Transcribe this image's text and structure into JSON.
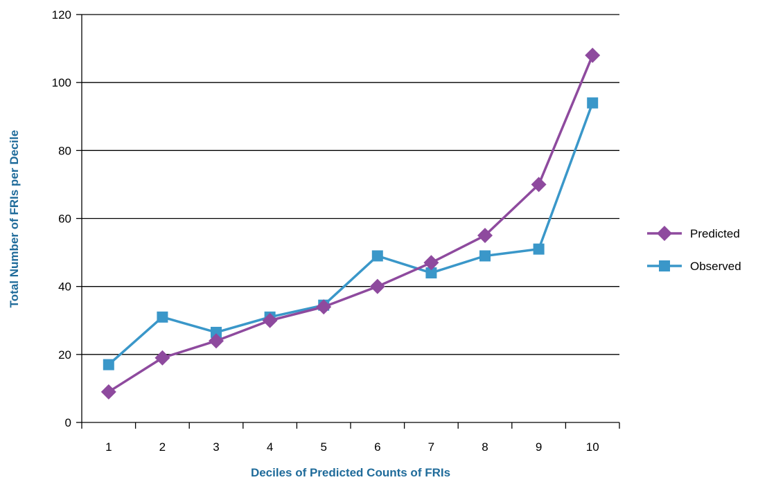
{
  "chart_data": {
    "type": "line",
    "title": "",
    "xlabel": "Deciles of Predicted Counts of FRIs",
    "ylabel": "Total Number of FRIs per Decile",
    "categories": [
      "1",
      "2",
      "3",
      "4",
      "5",
      "6",
      "7",
      "8",
      "9",
      "10"
    ],
    "ylim": [
      0,
      120
    ],
    "yticks": [
      0,
      20,
      40,
      60,
      80,
      100,
      120
    ],
    "grid": true,
    "legend_position": "right",
    "axis_title_color": "#1f6b9a",
    "series": [
      {
        "name": "Predicted",
        "marker": "diamond",
        "color": "#8e4a9e",
        "values": [
          9,
          19,
          24,
          30,
          34,
          40,
          47,
          55,
          70,
          108
        ]
      },
      {
        "name": "Observed",
        "marker": "square",
        "color": "#3a97c9",
        "values": [
          17,
          31,
          26.5,
          31,
          34.5,
          49,
          44,
          49,
          51,
          94
        ]
      }
    ]
  }
}
